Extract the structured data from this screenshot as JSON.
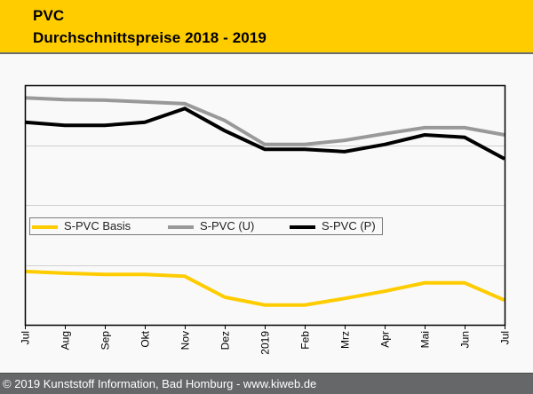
{
  "header": {
    "title_line1": "PVC",
    "title_line2": "Durchschnittspreise 2018 - 2019"
  },
  "footer": {
    "text": "© 2019 Kunststoff Information, Bad Homburg - www.kiweb.de"
  },
  "colors": {
    "header_bg": "#ffcc00",
    "footer_bg": "#666769",
    "basis": "#ffcc00",
    "u": "#999999",
    "p": "#000000",
    "grid": "#d0d0d0"
  },
  "chart_data": {
    "type": "line",
    "title": "PVC Durchschnittspreise 2018 - 2019",
    "xlabel": "",
    "ylabel": "",
    "y_units_note": "No y-axis tick labels shown; values in relative gridline units (0 = bottom axis, 4 = top)",
    "ylim": [
      0,
      4
    ],
    "y_gridlines": [
      1,
      2,
      3
    ],
    "grid": true,
    "legend_position": "center-left",
    "categories": [
      "Jul",
      "Aug",
      "Sep",
      "Okt",
      "Nov",
      "Dez",
      "2019",
      "Feb",
      "Mrz",
      "Apr",
      "Mai",
      "Jun",
      "Jul"
    ],
    "series": [
      {
        "name": "S-PVC Basis",
        "color": "#ffcc00",
        "values": [
          0.89,
          0.86,
          0.84,
          0.84,
          0.81,
          0.46,
          0.33,
          0.33,
          0.44,
          0.56,
          0.7,
          0.7,
          0.41
        ]
      },
      {
        "name": "S-PVC (U)",
        "color": "#999999",
        "values": [
          3.79,
          3.76,
          3.75,
          3.72,
          3.69,
          3.41,
          3.01,
          3.01,
          3.08,
          3.19,
          3.29,
          3.29,
          3.17
        ]
      },
      {
        "name": "S-PVC (P)",
        "color": "#000000",
        "values": [
          3.38,
          3.33,
          3.33,
          3.38,
          3.61,
          3.24,
          2.93,
          2.93,
          2.89,
          3.01,
          3.17,
          3.13,
          2.77
        ]
      }
    ]
  }
}
